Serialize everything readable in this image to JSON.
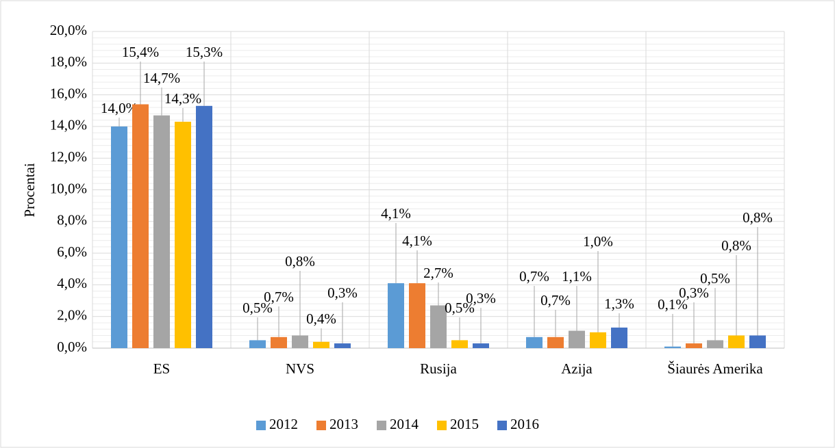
{
  "chart_data": {
    "type": "bar",
    "y_label": "Procentai",
    "categories": [
      "ES",
      "NVS",
      "Rusija",
      "Azija",
      "Šiaurės Amerika"
    ],
    "series": [
      {
        "name": "2012",
        "color": "#5b9bd5",
        "values": [
          14.0,
          0.5,
          4.1,
          0.7,
          0.1
        ],
        "value_labels": [
          "14,0%",
          "0,5%",
          "4,1%",
          "0,7%",
          "0,1%"
        ]
      },
      {
        "name": "2013",
        "color": "#ed7d31",
        "values": [
          15.4,
          0.7,
          4.1,
          0.7,
          0.3
        ],
        "value_labels": [
          "15,4%",
          "0,7%",
          "4,1%",
          "0,7%",
          "0,3%"
        ]
      },
      {
        "name": "2014",
        "color": "#a5a5a5",
        "values": [
          14.7,
          0.8,
          2.7,
          1.1,
          0.5
        ],
        "value_labels": [
          "14,7%",
          "0,8%",
          "2,7%",
          "1,1%",
          "0,5%"
        ]
      },
      {
        "name": "2015",
        "color": "#ffc000",
        "values": [
          14.3,
          0.4,
          0.5,
          1.0,
          0.8
        ],
        "value_labels": [
          "14,3%",
          "0,4%",
          "0,5%",
          "1,0%",
          "0,8%"
        ]
      },
      {
        "name": "2016",
        "color": "#4472c4",
        "values": [
          15.3,
          0.3,
          0.3,
          1.3,
          0.8
        ],
        "value_labels": [
          "15,3%",
          "0,3%",
          "0,3%",
          "1,3%",
          "0,8%"
        ]
      }
    ],
    "ylim": [
      0,
      20
    ],
    "yticks": [
      {
        "value": 0,
        "label": "0,0%"
      },
      {
        "value": 2,
        "label": "2,0%"
      },
      {
        "value": 4,
        "label": "4,0%"
      },
      {
        "value": 6,
        "label": "6,0%"
      },
      {
        "value": 8,
        "label": "8,0%"
      },
      {
        "value": 10,
        "label": "10,0%"
      },
      {
        "value": 12,
        "label": "12,0%"
      },
      {
        "value": 14,
        "label": "14,0%"
      },
      {
        "value": 16,
        "label": "16,0%"
      },
      {
        "value": 18,
        "label": "18,0%"
      },
      {
        "value": 20,
        "label": "20,0%"
      }
    ],
    "grid": true,
    "legend": "bottom"
  }
}
